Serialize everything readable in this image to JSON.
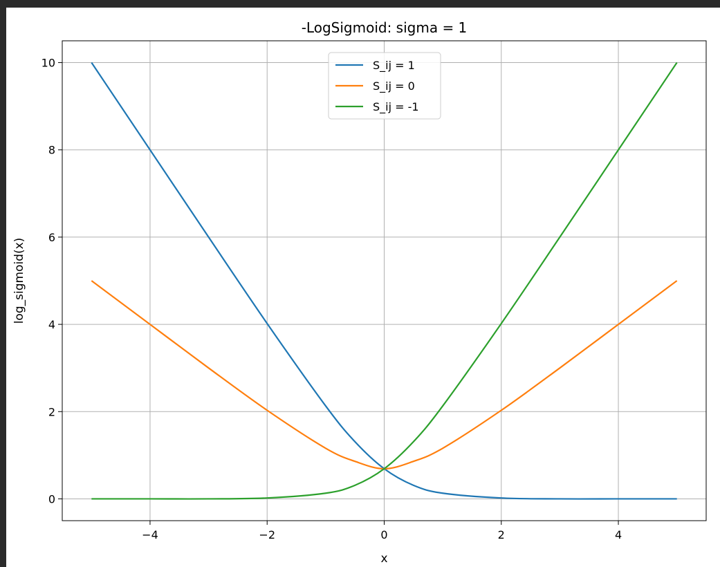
{
  "chart_data": {
    "type": "line",
    "title": "-LogSigmoid: sigma = 1",
    "xlabel": "x",
    "ylabel": "log_sigmoid(x)",
    "xlim": [
      -5.5,
      5.5
    ],
    "ylim": [
      -0.5,
      10.5
    ],
    "xticks": [
      -4,
      -2,
      0,
      2,
      4
    ],
    "xtick_labels": [
      "−4",
      "−2",
      "0",
      "2",
      "4"
    ],
    "yticks": [
      0,
      2,
      4,
      6,
      8,
      10
    ],
    "ytick_labels": [
      "0",
      "2",
      "4",
      "6",
      "8",
      "10"
    ],
    "grid": true,
    "legend_position": "top-center",
    "x": [
      -5,
      -4,
      -3,
      -2,
      -1,
      -0.5,
      0,
      0.5,
      1,
      2,
      3,
      4,
      5
    ],
    "series": [
      {
        "name": "S_ij = 1",
        "color": "#1f77b4",
        "values": [
          10.0,
          8.0,
          6.0,
          4.02,
          2.13,
          1.31,
          0.69,
          0.31,
          0.13,
          0.02,
          0.0,
          0.0,
          0.0
        ]
      },
      {
        "name": "S_ij = 0",
        "color": "#ff7f0e",
        "values": [
          5.0,
          4.0,
          3.0,
          2.03,
          1.16,
          0.86,
          0.69,
          0.86,
          1.16,
          2.03,
          3.0,
          4.0,
          5.0
        ]
      },
      {
        "name": "S_ij = -1",
        "color": "#2ca02c",
        "values": [
          0.0,
          0.0,
          0.0,
          0.02,
          0.13,
          0.31,
          0.69,
          1.31,
          2.13,
          4.02,
          6.0,
          8.0,
          10.0
        ]
      }
    ]
  }
}
